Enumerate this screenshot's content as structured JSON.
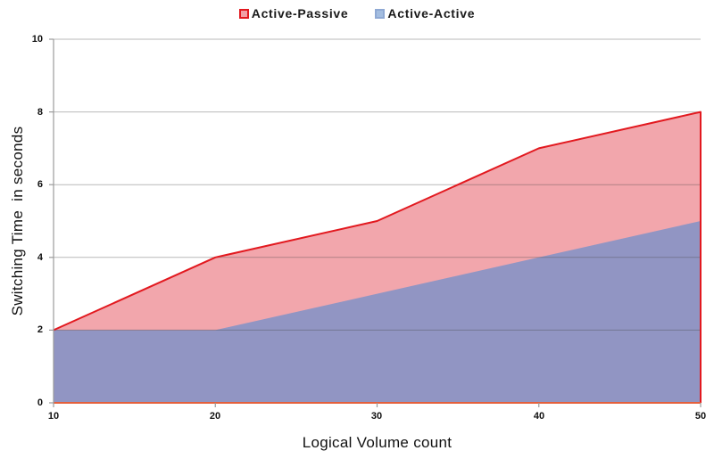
{
  "legend": {
    "items": [
      {
        "label": "Active-Passive",
        "swatch_fill": "#F2A0A6",
        "swatch_border": "#E2191F"
      },
      {
        "label": "Active-Active",
        "swatch_fill": "#A3BDE0",
        "swatch_border": "#8FA9D4"
      }
    ]
  },
  "chart_data": {
    "type": "area",
    "title": "",
    "xlabel": "Logical Volume count",
    "ylabel": "Switching Time  in seconds",
    "x": [
      10,
      20,
      30,
      40,
      50
    ],
    "series": [
      {
        "name": "Active-Passive",
        "values": [
          2,
          4,
          5,
          7,
          8
        ],
        "fill": "#F2A6AC",
        "line": "#E2191F"
      },
      {
        "name": "Active-Active",
        "values": [
          2,
          2,
          3,
          4,
          5
        ],
        "fill": "#9195C3",
        "line": "none"
      }
    ],
    "xlim": [
      10,
      50
    ],
    "ylim": [
      0,
      10
    ],
    "xticks": [
      10,
      20,
      30,
      40,
      50
    ],
    "yticks": [
      0,
      2,
      4,
      6,
      8,
      10
    ],
    "grid": true,
    "legend_position": "top",
    "gridline_color": "rgba(70,70,70,0.38)",
    "axis_color": "#9B9B9B",
    "baseline_color": "#E4603C",
    "tick_label_color": "#111111"
  }
}
